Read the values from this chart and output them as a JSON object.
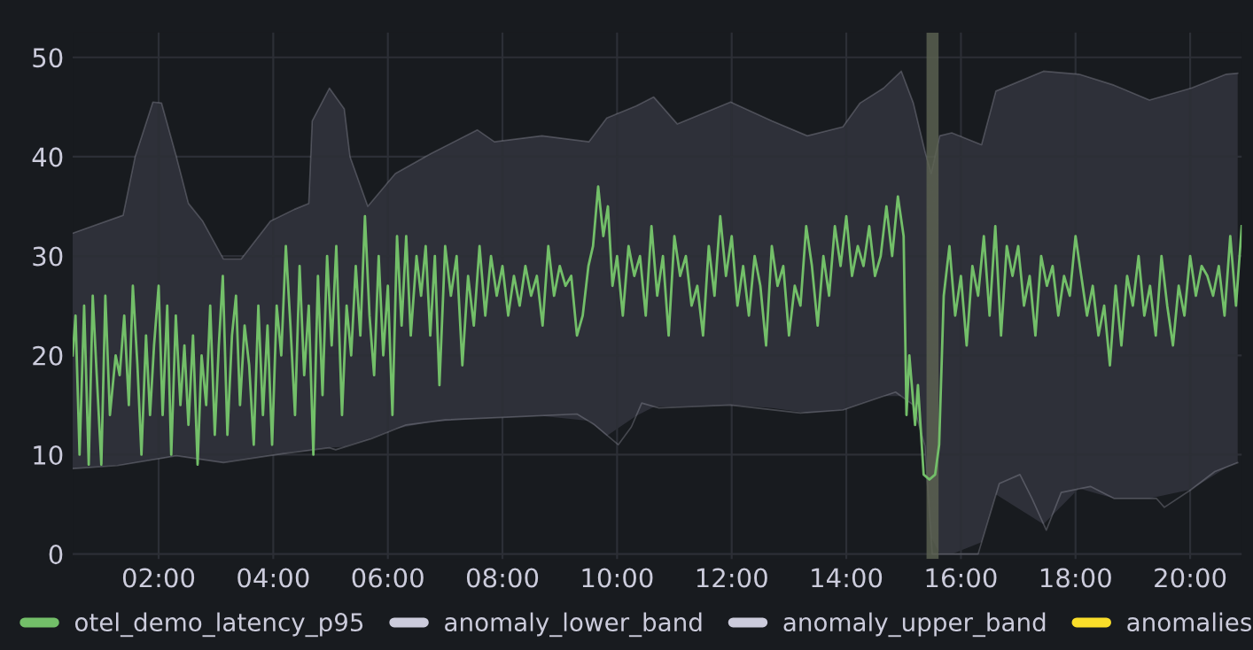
{
  "chart_data": {
    "type": "line",
    "xlim": [
      0.5,
      20.9
    ],
    "ylim": [
      -0.5,
      52.5
    ],
    "xticks": [
      {
        "value": 2,
        "label": "02:00"
      },
      {
        "value": 4,
        "label": "04:00"
      },
      {
        "value": 6,
        "label": "06:00"
      },
      {
        "value": 8,
        "label": "08:00"
      },
      {
        "value": 10,
        "label": "10:00"
      },
      {
        "value": 12,
        "label": "12:00"
      },
      {
        "value": 14,
        "label": "14:00"
      },
      {
        "value": 16,
        "label": "16:00"
      },
      {
        "value": 18,
        "label": "18:00"
      },
      {
        "value": 20,
        "label": "20:00"
      }
    ],
    "yticks": [
      0,
      10,
      20,
      30,
      40,
      50
    ],
    "grid": true,
    "legend": "bottom",
    "marker": "none",
    "line_style": "solid",
    "bands": [
      {
        "axis": "x",
        "from": 15.4,
        "to": 15.61,
        "color": "#5d6352"
      }
    ],
    "series": [
      {
        "name": "otel_demo_latency_p95",
        "color": "#73bf69",
        "x": [
          0.5,
          0.55,
          0.62,
          0.7,
          0.78,
          0.85,
          0.92,
          1.0,
          1.07,
          1.15,
          1.25,
          1.32,
          1.4,
          1.48,
          1.55,
          1.63,
          1.7,
          1.78,
          1.85,
          1.92,
          2.0,
          2.07,
          2.15,
          2.22,
          2.3,
          2.38,
          2.45,
          2.52,
          2.6,
          2.68,
          2.75,
          2.83,
          2.9,
          2.98,
          3.05,
          3.12,
          3.2,
          3.28,
          3.35,
          3.42,
          3.5,
          3.58,
          3.66,
          3.74,
          3.82,
          3.9,
          3.98,
          4.06,
          4.14,
          4.22,
          4.3,
          4.38,
          4.46,
          4.54,
          4.62,
          4.7,
          4.78,
          4.86,
          4.94,
          5.02,
          5.1,
          5.2,
          5.28,
          5.36,
          5.44,
          5.52,
          5.6,
          5.68,
          5.76,
          5.84,
          5.92,
          6.0,
          6.08,
          6.16,
          6.24,
          6.32,
          6.4,
          6.5,
          6.58,
          6.66,
          6.74,
          6.82,
          6.9,
          7.0,
          7.1,
          7.2,
          7.3,
          7.4,
          7.5,
          7.6,
          7.7,
          7.8,
          7.9,
          8.0,
          8.1,
          8.2,
          8.3,
          8.4,
          8.5,
          8.6,
          8.7,
          8.8,
          8.9,
          9.0,
          9.1,
          9.2,
          9.3,
          9.4,
          9.5,
          9.58,
          9.67,
          9.76,
          9.84,
          9.92,
          10.0,
          10.1,
          10.2,
          10.3,
          10.4,
          10.5,
          10.6,
          10.7,
          10.8,
          10.9,
          11.0,
          11.1,
          11.2,
          11.3,
          11.4,
          11.5,
          11.6,
          11.7,
          11.8,
          11.9,
          12.0,
          12.1,
          12.2,
          12.3,
          12.4,
          12.5,
          12.6,
          12.7,
          12.8,
          12.9,
          13.0,
          13.1,
          13.2,
          13.3,
          13.4,
          13.5,
          13.6,
          13.7,
          13.8,
          13.9,
          14.0,
          14.1,
          14.2,
          14.3,
          14.4,
          14.5,
          14.6,
          14.7,
          14.8,
          14.9,
          15.0,
          15.05,
          15.1,
          15.2,
          15.25,
          15.35,
          15.45,
          15.55,
          15.62,
          15.7,
          15.8,
          15.9,
          16.0,
          16.1,
          16.2,
          16.3,
          16.4,
          16.5,
          16.6,
          16.7,
          16.8,
          16.9,
          17.0,
          17.1,
          17.2,
          17.3,
          17.4,
          17.5,
          17.6,
          17.7,
          17.8,
          17.9,
          18.0,
          18.1,
          18.2,
          18.3,
          18.4,
          18.5,
          18.6,
          18.7,
          18.8,
          18.9,
          19.0,
          19.1,
          19.2,
          19.3,
          19.4,
          19.5,
          19.6,
          19.7,
          19.8,
          19.9,
          20.0,
          20.1,
          20.2,
          20.3,
          20.4,
          20.5,
          20.6,
          20.7,
          20.8,
          20.9
        ],
        "values": [
          20,
          24,
          10,
          25,
          9,
          26,
          18,
          9,
          26,
          14,
          20,
          18,
          24,
          15,
          27,
          19,
          10,
          22,
          14,
          21,
          27,
          14,
          25,
          10,
          24,
          15,
          21,
          13,
          22,
          9,
          20,
          15,
          25,
          12,
          21,
          28,
          12,
          22,
          26,
          15,
          23,
          19,
          11,
          25,
          14,
          23,
          11,
          25,
          20,
          31,
          23,
          14,
          29,
          18,
          25,
          10,
          28,
          16,
          30,
          21,
          31,
          14,
          25,
          20,
          29,
          22,
          34,
          24,
          18,
          30,
          20,
          27,
          14,
          32,
          23,
          32,
          22,
          30,
          26,
          31,
          22,
          30,
          17,
          31,
          26,
          30,
          19,
          28,
          23,
          31,
          24,
          30,
          26,
          29,
          24,
          28,
          25,
          29,
          26,
          28,
          23,
          31,
          26,
          29,
          27,
          28,
          22,
          24,
          29,
          31,
          37,
          32,
          35,
          27,
          30,
          24,
          31,
          28,
          30,
          24,
          33,
          26,
          30,
          22,
          32,
          28,
          30,
          25,
          27,
          22,
          31,
          26,
          34,
          28,
          32,
          25,
          29,
          24,
          30,
          27,
          21,
          31,
          27,
          29,
          22,
          27,
          25,
          33,
          29,
          23,
          30,
          26,
          33,
          29,
          34,
          28,
          31,
          29,
          33,
          28,
          30,
          35,
          30,
          36,
          32,
          14,
          20,
          13,
          17,
          8,
          7.5,
          8,
          11,
          26,
          31,
          24,
          28,
          21,
          29,
          26,
          32,
          24,
          33,
          22,
          31,
          28,
          31,
          25,
          28,
          22,
          30,
          27,
          29,
          24,
          28,
          26,
          32,
          28,
          24,
          27,
          22,
          25,
          19,
          27,
          21,
          28,
          25,
          30,
          24,
          27,
          22,
          30,
          25,
          21,
          27,
          24,
          30,
          26,
          29,
          28,
          26,
          29,
          24,
          32,
          25,
          33
        ]
      },
      {
        "name": "anomaly_lower_band",
        "color": "#ccccdc",
        "x": [
          0.5,
          1.28,
          2.31,
          3.13,
          4.16,
          4.98,
          5.09,
          5.71,
          6.32,
          7.0,
          8.17,
          9.3,
          9.61,
          10.02,
          10.25,
          10.43,
          10.73,
          11.98,
          13.2,
          13.94,
          14.86,
          15.17,
          15.37,
          15.5,
          15.63,
          16.3,
          16.67,
          17.03,
          17.24,
          17.49,
          17.75,
          18.26,
          18.67,
          19.41,
          19.55,
          20.02,
          20.43,
          20.83
        ],
        "values": [
          8.6,
          8.9,
          9.9,
          9.2,
          10.1,
          10.7,
          10.5,
          11.6,
          13.0,
          13.5,
          13.8,
          14.1,
          13.0,
          11.0,
          12.8,
          15.2,
          14.7,
          15.0,
          14.2,
          14.5,
          16.3,
          15.0,
          10.9,
          0,
          0,
          0,
          7.1,
          8.0,
          5.6,
          2.4,
          6.2,
          6.8,
          5.6,
          5.6,
          4.7,
          6.5,
          8.3,
          9.2
        ]
      },
      {
        "name": "anomaly_upper_band",
        "color": "#ccccdc",
        "lower": [
          8.6,
          9.0,
          9.2,
          9.5,
          9.6,
          9.9,
          9.7,
          9.5,
          9.2,
          9.5,
          9.9,
          10.3,
          10.4,
          10.5,
          10.7,
          10.8,
          11.0,
          11.5,
          12.6,
          13.3,
          13.6,
          13.7,
          13.9,
          13.4,
          11.9,
          13.9,
          14.8,
          14.8,
          15.0,
          14.7,
          14.2,
          14.5,
          15.1,
          15.9,
          15.9,
          15.0,
          10.9,
          1.7,
          0,
          0,
          1.2,
          6.0,
          3.0,
          6.6,
          5.6,
          5.6,
          6.5,
          8.7,
          9.2
        ],
        "upper": [
          32.3,
          34.1,
          40.0,
          45.5,
          45.4,
          40.0,
          35.3,
          33.5,
          29.7,
          29.7,
          33.5,
          34.7,
          35.3,
          43.6,
          46.9,
          44.8,
          40.0,
          35.0,
          38.3,
          40.3,
          42.7,
          41.5,
          42.1,
          41.5,
          43.9,
          45.1,
          46.0,
          43.3,
          45.5,
          43.6,
          42.1,
          43.0,
          45.4,
          46.9,
          48.6,
          45.4,
          40.6,
          38.3,
          42.1,
          42.4,
          41.2,
          46.6,
          48.6,
          48.3,
          47.2,
          45.7,
          46.9,
          48.3,
          48.4
        ],
        "x": [
          0.5,
          1.38,
          1.59,
          1.9,
          2.05,
          2.31,
          2.52,
          2.77,
          3.13,
          3.44,
          3.95,
          4.37,
          4.62,
          4.68,
          4.98,
          5.24,
          5.34,
          5.65,
          6.13,
          6.75,
          7.56,
          7.86,
          8.69,
          9.51,
          9.82,
          10.33,
          10.64,
          11.05,
          11.98,
          12.7,
          13.32,
          13.94,
          14.24,
          14.65,
          14.96,
          15.17,
          15.37,
          15.48,
          15.63,
          15.84,
          16.36,
          16.61,
          17.44,
          18.06,
          18.67,
          19.29,
          20.02,
          20.63,
          20.83
        ],
        "values": [
          32.3,
          34.1,
          40.0,
          45.5,
          45.4,
          40.0,
          35.3,
          33.5,
          29.7,
          29.7,
          33.5,
          34.7,
          35.3,
          43.6,
          46.9,
          44.8,
          40.0,
          35.0,
          38.3,
          40.3,
          42.7,
          41.5,
          42.1,
          41.5,
          43.9,
          45.1,
          46.0,
          43.3,
          45.5,
          43.6,
          42.1,
          43.0,
          45.4,
          46.9,
          48.6,
          45.4,
          40.6,
          38.3,
          42.1,
          42.4,
          41.2,
          46.6,
          48.6,
          48.3,
          47.2,
          45.7,
          46.9,
          48.3,
          48.4
        ]
      },
      {
        "name": "anomalies",
        "color": "#fade2a"
      }
    ]
  }
}
